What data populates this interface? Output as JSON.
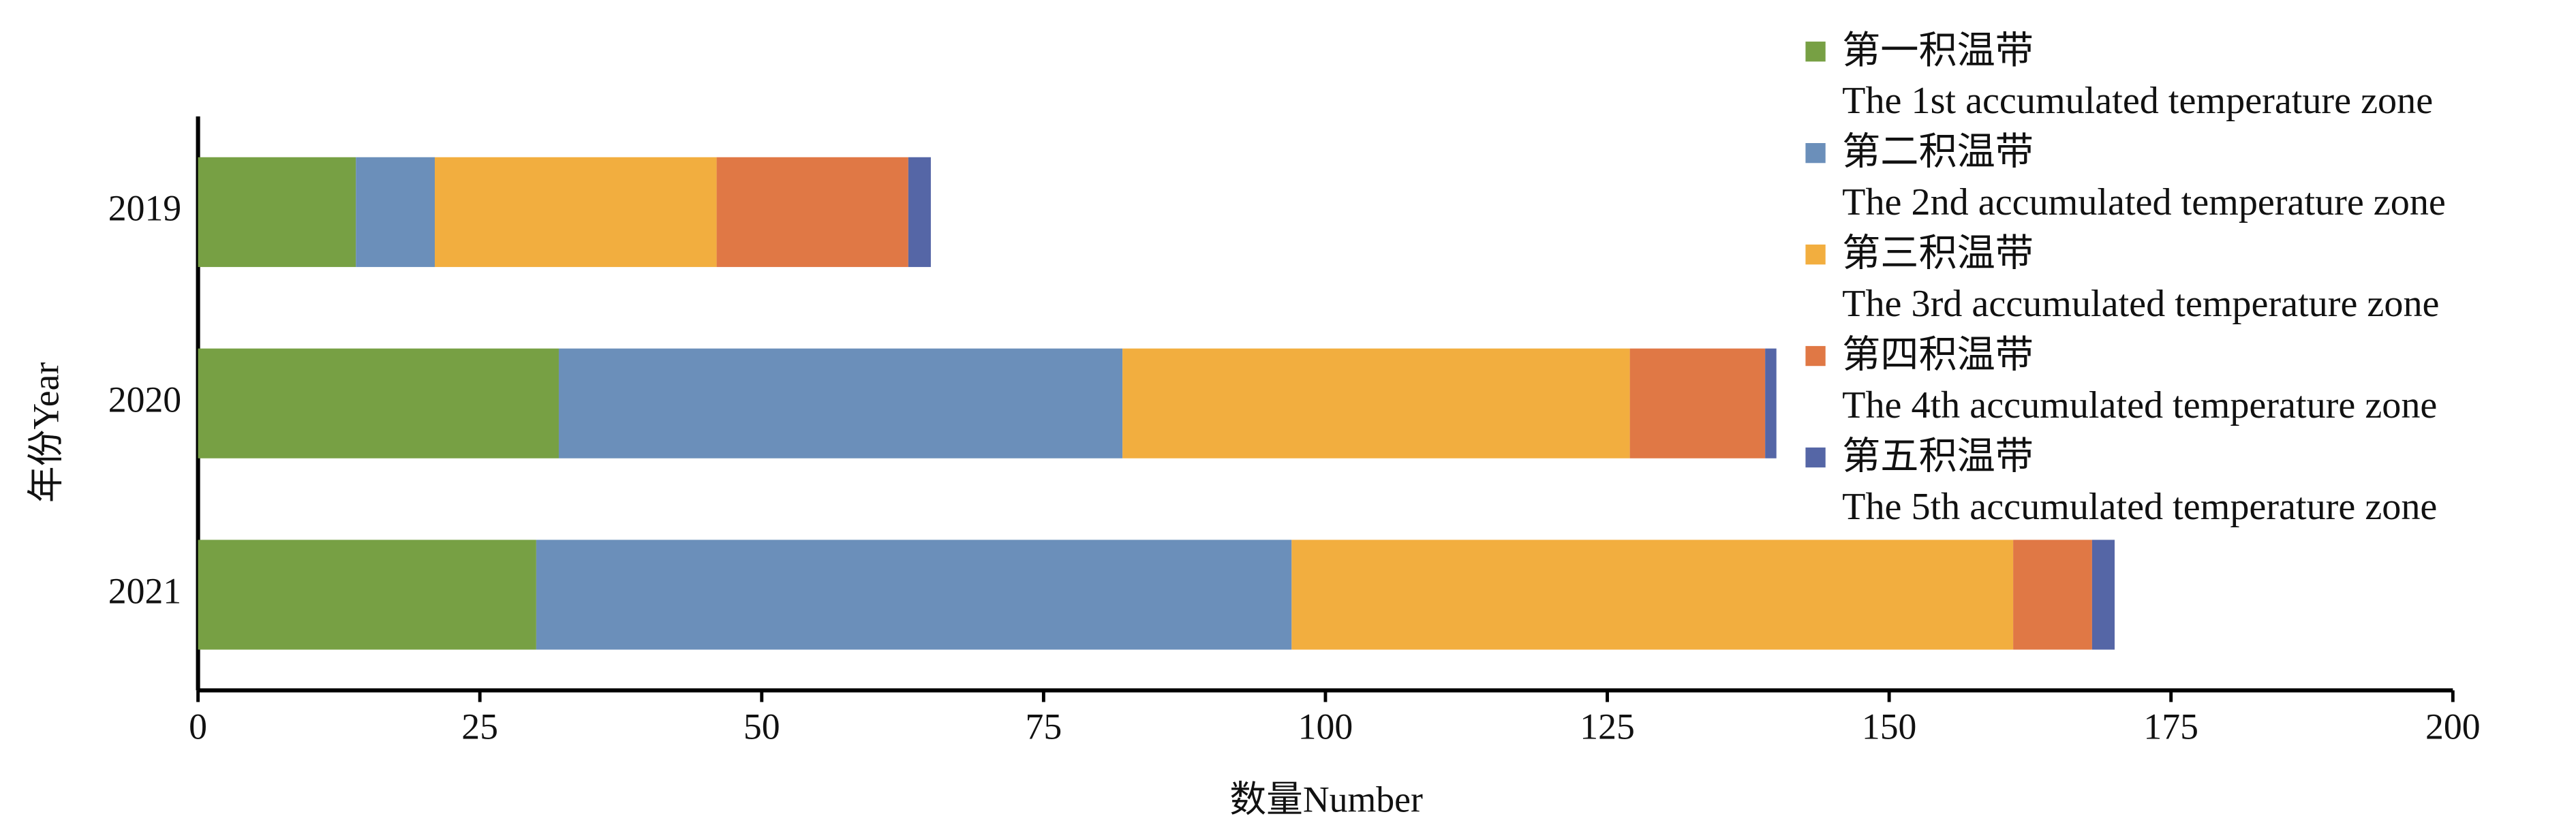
{
  "chart_data": {
    "type": "stacked-horizontal-bar",
    "y_label": "年份Year",
    "x_label": "数量Number",
    "categories": [
      "2019",
      "2020",
      "2021"
    ],
    "series": [
      {
        "name": "第一积温带\nThe 1st accumulated temperature zone",
        "color": "#77a044",
        "values": [
          14,
          32,
          30
        ]
      },
      {
        "name": "第二积温带\nThe 2nd accumulated temperature zone",
        "color": "#6b8fba",
        "values": [
          7,
          50,
          67
        ]
      },
      {
        "name": "第三积温带\nThe 3rd accumulated temperature zone",
        "color": "#f2ae3f",
        "values": [
          25,
          45,
          64
        ]
      },
      {
        "name": "第四积温带\nThe 4th accumulated temperature zone",
        "color": "#e07845",
        "values": [
          17,
          12,
          7
        ]
      },
      {
        "name": "第五积温带\nThe 5th accumulated temperature zone",
        "color": "#5566a6",
        "values": [
          2,
          1,
          2
        ]
      }
    ],
    "xlim": [
      0,
      200
    ],
    "xticks": [
      0,
      25,
      50,
      75,
      100,
      125,
      150,
      175,
      200
    ],
    "legend": "upper right"
  }
}
